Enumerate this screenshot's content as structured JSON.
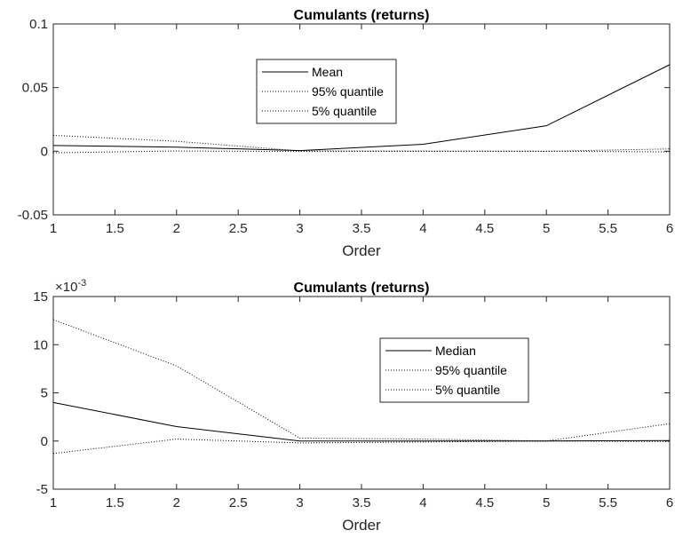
{
  "chart_data": [
    {
      "type": "line",
      "title": "Cumulants (returns)",
      "xlabel": "Order",
      "ylabel": "",
      "xlim": [
        1,
        6
      ],
      "ylim": [
        -0.05,
        0.1
      ],
      "x": [
        1,
        2,
        3,
        4,
        5,
        6
      ],
      "xticks": [
        "1",
        "1.5",
        "2",
        "2.5",
        "3",
        "3.5",
        "4",
        "4.5",
        "5",
        "5.5",
        "6"
      ],
      "yticks": [
        "-0.05",
        "0",
        "0.05",
        "0.1"
      ],
      "exponent_label": "",
      "legend_position": "center",
      "series": [
        {
          "name": "Mean",
          "style": "solid",
          "values": [
            0.0045,
            0.0032,
            0.0005,
            0.0055,
            0.02,
            0.068
          ]
        },
        {
          "name": "95% quantile",
          "style": "dotted",
          "values": [
            0.0125,
            0.0078,
            0.0003,
            0.0002,
            0.0,
            0.0018
          ]
        },
        {
          "name": "5% quantile",
          "style": "dotted",
          "values": [
            -0.0012,
            0.0002,
            -0.0002,
            -0.0001,
            0.0,
            -0.0005
          ]
        }
      ]
    },
    {
      "type": "line",
      "title": "Cumulants (returns)",
      "xlabel": "Order",
      "ylabel": "",
      "xlim": [
        1,
        6
      ],
      "ylim": [
        -5,
        15
      ],
      "x": [
        1,
        2,
        3,
        4,
        5,
        6
      ],
      "xticks": [
        "1",
        "1.5",
        "2",
        "2.5",
        "3",
        "3.5",
        "4",
        "4.5",
        "5",
        "5.5",
        "6"
      ],
      "yticks": [
        "-5",
        "0",
        "5",
        "10",
        "15"
      ],
      "exponent_label": "×10",
      "exponent_power": "-3",
      "legend_position": "center-right",
      "series": [
        {
          "name": "Median",
          "style": "solid",
          "values": [
            4.0,
            1.5,
            0.0,
            0.0,
            0.0,
            0.05
          ]
        },
        {
          "name": "95% quantile",
          "style": "dotted",
          "values": [
            12.6,
            7.8,
            0.3,
            0.2,
            0.0,
            1.8
          ]
        },
        {
          "name": "5% quantile",
          "style": "dotted",
          "values": [
            -1.3,
            0.2,
            -0.2,
            -0.1,
            0.0,
            -0.05
          ]
        }
      ]
    }
  ]
}
